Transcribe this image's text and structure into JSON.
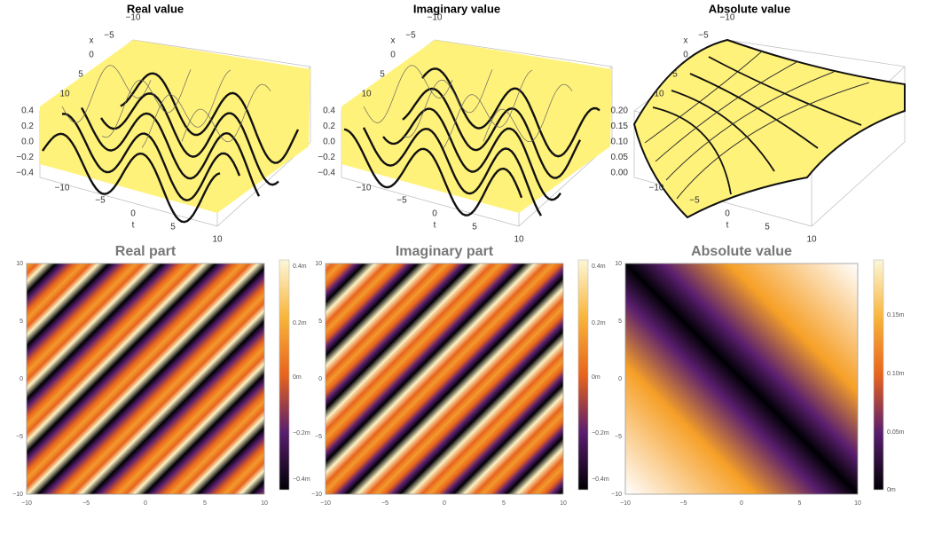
{
  "panels_3d": [
    {
      "title": "Real value",
      "x_label": "x",
      "t_label": "t",
      "x_ticks": [
        "−10",
        "−5",
        "0",
        "5",
        "10"
      ],
      "t_ticks": [
        "−10",
        "−5",
        "0",
        "5",
        "10"
      ],
      "z_ticks": [
        "0.4",
        "0.2",
        "0.0",
        "−0.2",
        "−0.4"
      ]
    },
    {
      "title": "Imaginary value",
      "x_label": "x",
      "t_label": "t",
      "x_ticks": [
        "−10",
        "−5",
        "0",
        "5",
        "10"
      ],
      "t_ticks": [
        "−10",
        "−5",
        "0",
        "5",
        "10"
      ],
      "z_ticks": [
        "0.4",
        "0.2",
        "0.0",
        "−0.2",
        "−0.4"
      ]
    },
    {
      "title": "Absolute value",
      "x_label": "x",
      "t_label": "t",
      "x_ticks": [
        "−10",
        "−5",
        "0",
        "5",
        "10"
      ],
      "t_ticks": [
        "−10",
        "−5",
        "0",
        "5",
        "10"
      ],
      "z_ticks": [
        "0.20",
        "0.15",
        "0.10",
        "0.05",
        "0.00"
      ]
    }
  ],
  "panels_density": [
    {
      "title": "Real part",
      "x_ticks": [
        "−10",
        "−5",
        "0",
        "5",
        "10"
      ],
      "y_ticks": [
        "10",
        "5",
        "0",
        "−5",
        "−10"
      ],
      "colorbar_ticks": [
        "0.4m",
        "0.2m",
        "0m",
        "−0.2m",
        "−0.4m"
      ]
    },
    {
      "title": "Imaginary part",
      "x_ticks": [
        "−10",
        "−5",
        "0",
        "5",
        "10"
      ],
      "y_ticks": [
        "10",
        "5",
        "0",
        "−5",
        "−10"
      ],
      "colorbar_ticks": [
        "0.4m",
        "0.2m",
        "0m",
        "−0.2m",
        "−0.4m"
      ]
    },
    {
      "title": "Absolute value",
      "x_ticks": [
        "−10",
        "−5",
        "0",
        "5",
        "10"
      ],
      "y_ticks": [
        "10",
        "5",
        "0",
        "−5",
        "−10"
      ],
      "colorbar_ticks": [
        "0.15m",
        "0.10m",
        "0.05m",
        "0m"
      ]
    }
  ]
}
